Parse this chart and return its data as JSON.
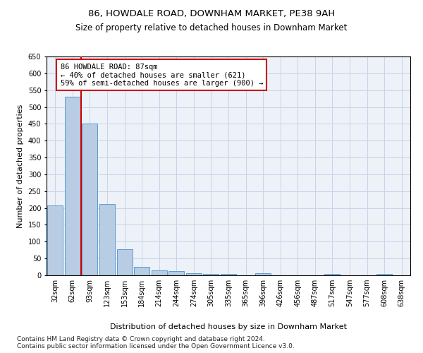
{
  "title1": "86, HOWDALE ROAD, DOWNHAM MARKET, PE38 9AH",
  "title2": "Size of property relative to detached houses in Downham Market",
  "xlabel": "Distribution of detached houses by size in Downham Market",
  "ylabel": "Number of detached properties",
  "categories": [
    "32sqm",
    "62sqm",
    "93sqm",
    "123sqm",
    "153sqm",
    "184sqm",
    "214sqm",
    "244sqm",
    "274sqm",
    "305sqm",
    "335sqm",
    "365sqm",
    "396sqm",
    "426sqm",
    "456sqm",
    "487sqm",
    "517sqm",
    "547sqm",
    "577sqm",
    "608sqm",
    "638sqm"
  ],
  "values": [
    208,
    530,
    450,
    212,
    78,
    26,
    15,
    12,
    7,
    5,
    5,
    0,
    6,
    0,
    0,
    0,
    5,
    0,
    0,
    5,
    0
  ],
  "bar_color": "#b8cce4",
  "bar_edge_color": "#5b9bd5",
  "grid_color": "#c8d4e8",
  "annotation_box_color": "#cc0000",
  "annotation_text_line1": "86 HOWDALE ROAD: 87sqm",
  "annotation_text_line2": "← 40% of detached houses are smaller (621)",
  "annotation_text_line3": "59% of semi-detached houses are larger (900) →",
  "ylim": [
    0,
    650
  ],
  "yticks": [
    0,
    50,
    100,
    150,
    200,
    250,
    300,
    350,
    400,
    450,
    500,
    550,
    600,
    650
  ],
  "footer1": "Contains HM Land Registry data © Crown copyright and database right 2024.",
  "footer2": "Contains public sector information licensed under the Open Government Licence v3.0.",
  "title1_fontsize": 9.5,
  "title2_fontsize": 8.5,
  "xlabel_fontsize": 8,
  "ylabel_fontsize": 8,
  "tick_fontsize": 7,
  "annotation_fontsize": 7.5,
  "footer_fontsize": 6.5,
  "background_color": "#ffffff",
  "plot_bg_color": "#edf1f8"
}
